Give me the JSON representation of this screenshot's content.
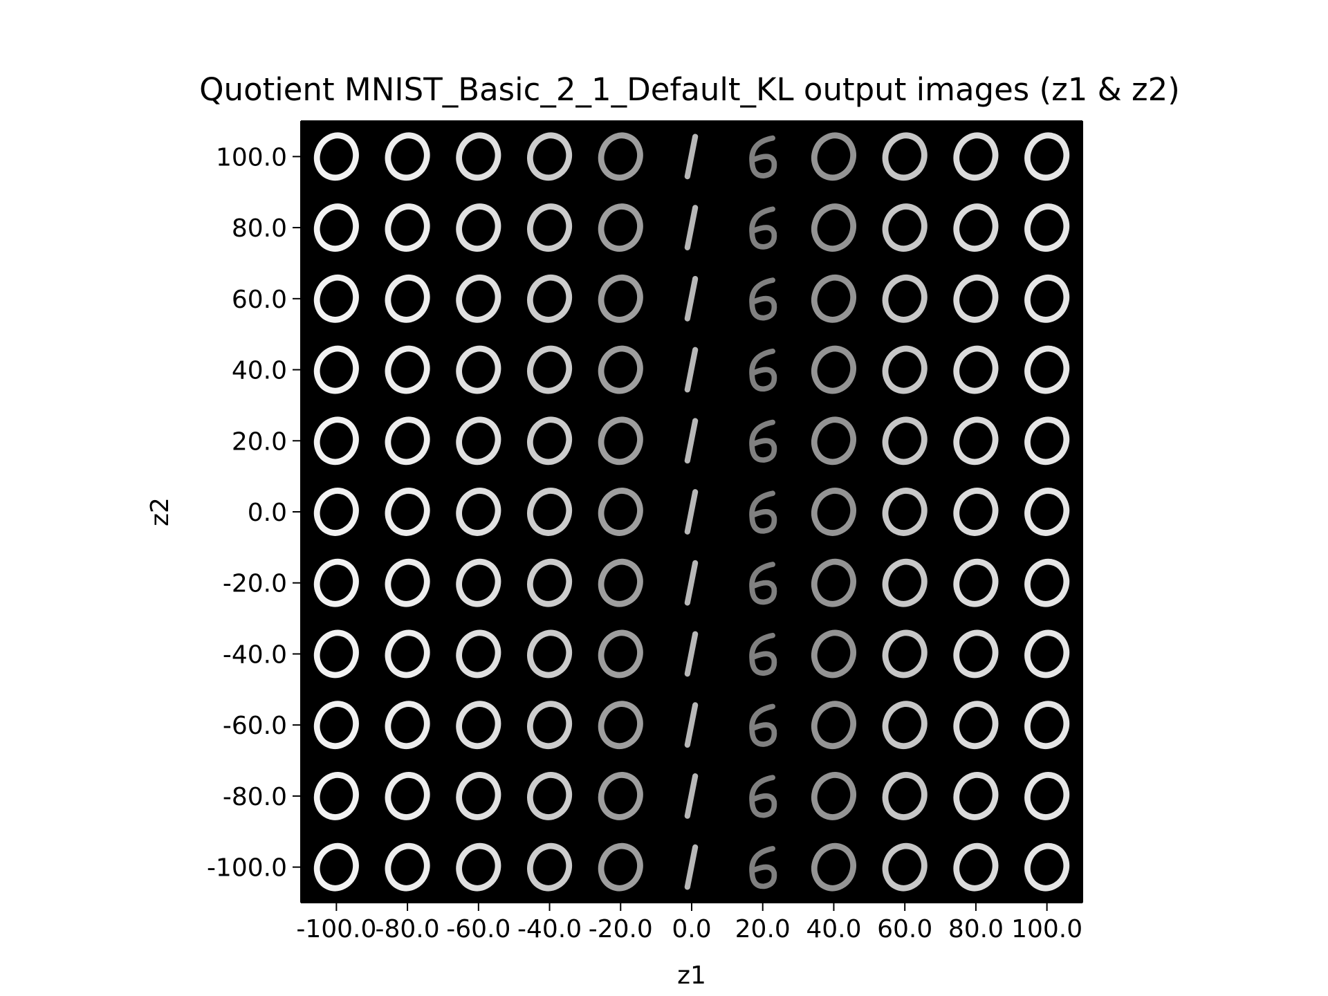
{
  "chart_data": {
    "type": "heatmap",
    "title": "Quotient MNIST_Basic_2_1_Default_KL output images (z1 & z2)",
    "xlabel": "z1",
    "ylabel": "z2",
    "x_ticks": [
      "-100.0",
      "-80.0",
      "-60.0",
      "-40.0",
      "-20.0",
      "0.0",
      "20.0",
      "40.0",
      "60.0",
      "80.0",
      "100.0"
    ],
    "y_ticks": [
      "100.0",
      "80.0",
      "60.0",
      "40.0",
      "20.0",
      "0.0",
      "-20.0",
      "-40.0",
      "-60.0",
      "-80.0",
      "-100.0"
    ],
    "x_values": [
      -100,
      -80,
      -60,
      -40,
      -20,
      0,
      20,
      40,
      60,
      80,
      100
    ],
    "y_values": [
      100,
      80,
      60,
      40,
      20,
      0,
      -20,
      -40,
      -60,
      -80,
      -100
    ],
    "column_digits": [
      "0",
      "0",
      "0",
      "0",
      "0",
      "1",
      "6",
      "0",
      "0",
      "0",
      "0"
    ],
    "column_brightness": [
      0.95,
      0.93,
      0.88,
      0.8,
      0.62,
      0.72,
      0.5,
      0.58,
      0.78,
      0.86,
      0.9
    ],
    "background_color": "#000000",
    "grid": false
  }
}
